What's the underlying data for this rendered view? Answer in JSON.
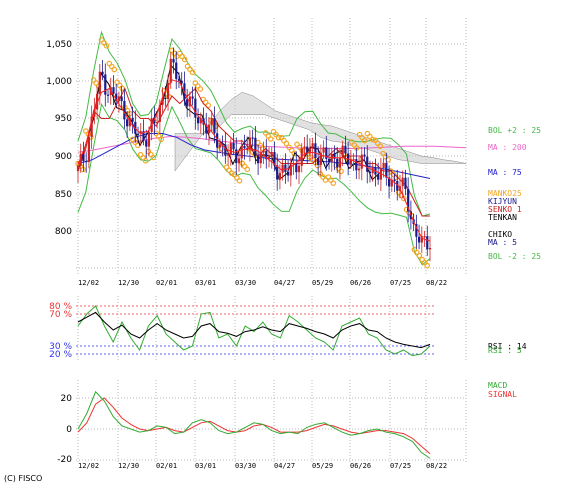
{
  "chart_data": [
    {
      "type": "candlestick",
      "panel": "price",
      "yticks": [
        800,
        850,
        900,
        950,
        "1,000",
        "1,050"
      ],
      "ylim": [
        770,
        1070
      ],
      "grid": true,
      "x_tick_labels": [
        "12/02",
        "12/30",
        "02/01",
        "03/01",
        "03/30",
        "04/27",
        "05/29",
        "06/26",
        "07/25",
        "08/22"
      ],
      "legend": {
        "bol_upper": "BOL +2 : 25",
        "ma200": "MA : 200",
        "ma75": "MA : 75",
        "manko": "MANKO25",
        "kijyun": "KIJYUN",
        "senko1": "SENKO 1",
        "tenkan": "TENKAN",
        "chiko": "CHIKO",
        "ma5": "MA : 5",
        "bol_lower": "BOL -2 : 25"
      },
      "approx_close": [
        880,
        905,
        960,
        1010,
        985,
        975,
        960,
        935,
        925,
        930,
        945,
        985,
        1020,
        1000,
        975,
        955,
        945,
        935,
        920,
        905,
        900,
        910,
        915,
        905,
        900,
        890,
        880,
        875,
        895,
        905,
        910,
        900,
        895,
        900,
        898,
        895,
        890,
        885,
        880,
        875,
        870,
        860,
        850,
        800,
        780,
        790
      ],
      "ichimoku_cloud": {
        "senko_a": [
          880,
          900,
          920,
          940,
          960,
          975,
          985,
          980,
          970,
          960,
          955,
          950,
          945,
          942,
          940,
          935,
          930,
          925,
          920,
          915,
          910,
          905,
          900,
          898,
          895,
          893,
          890
        ],
        "senko_b": [
          930,
          930,
          930,
          930,
          940,
          955,
          955,
          955,
          955,
          950,
          945,
          940,
          935,
          925,
          920,
          918,
          912,
          910,
          905,
          900,
          895,
          893,
          890,
          890,
          890,
          890,
          890
        ]
      },
      "ma200": [
        905,
        908,
        912,
        916,
        920,
        924,
        926,
        925,
        923,
        920,
        918,
        915,
        913,
        912,
        911,
        910,
        910,
        910,
        910,
        911,
        912,
        913,
        913,
        913,
        912,
        911
      ],
      "ma75": [
        890,
        895,
        905,
        915,
        925,
        930,
        930,
        925,
        915,
        908,
        905,
        902,
        900,
        898,
        896,
        895,
        894,
        893,
        892,
        890,
        888,
        885,
        882,
        878,
        874,
        870
      ]
    },
    {
      "type": "line",
      "panel": "rsi",
      "yticks_left": [
        "80 %",
        "70 %",
        "30 %",
        "20 %"
      ],
      "reference_levels": [
        80,
        70,
        30,
        20
      ],
      "legend": {
        "rsi14": "RSI : 14",
        "rsi5": "RSI : 5"
      },
      "series": [
        {
          "name": "RSI : 14",
          "color": "#000000",
          "values": [
            60,
            66,
            72,
            60,
            50,
            56,
            45,
            40,
            50,
            58,
            50,
            45,
            40,
            42,
            55,
            58,
            48,
            46,
            42,
            48,
            50,
            54,
            50,
            48,
            58,
            55,
            52,
            48,
            45,
            40,
            50,
            55,
            58,
            50,
            48,
            40,
            35,
            32,
            30,
            28,
            32
          ]
        },
        {
          "name": "RSI : 5",
          "color": "#33aa33",
          "values": [
            55,
            70,
            80,
            55,
            35,
            60,
            40,
            25,
            55,
            68,
            45,
            35,
            25,
            30,
            70,
            72,
            40,
            45,
            30,
            55,
            48,
            60,
            45,
            40,
            68,
            60,
            50,
            40,
            35,
            25,
            55,
            60,
            65,
            45,
            40,
            25,
            20,
            25,
            18,
            20,
            30
          ]
        }
      ]
    },
    {
      "type": "line",
      "panel": "macd",
      "yticks": [
        "20",
        "0",
        "-20"
      ],
      "ylim": [
        -25,
        28
      ],
      "legend": {
        "macd": "MACD",
        "signal": "SIGNAL"
      },
      "series": [
        {
          "name": "MACD",
          "color": "#33aa33",
          "values": [
            0,
            10,
            24,
            18,
            8,
            2,
            0,
            -2,
            -1,
            2,
            1,
            -3,
            -2,
            4,
            6,
            4,
            -1,
            -3,
            -2,
            1,
            4,
            3,
            -1,
            -3,
            -2,
            -3,
            1,
            3,
            4,
            1,
            -2,
            -4,
            -3,
            -1,
            0,
            -2,
            -3,
            -5,
            -8,
            -15,
            -19
          ]
        },
        {
          "name": "SIGNAL",
          "color": "#ee3333",
          "values": [
            -2,
            4,
            16,
            20,
            14,
            7,
            3,
            0,
            -1,
            0,
            1,
            -1,
            -2,
            1,
            4,
            5,
            2,
            -1,
            -2,
            -1,
            2,
            3,
            1,
            -2,
            -2,
            -2,
            -1,
            1,
            3,
            2,
            0,
            -2,
            -3,
            -2,
            -1,
            -1,
            -2,
            -3,
            -6,
            -11,
            -16
          ]
        }
      ]
    }
  ],
  "copyright": "(C) FISCO",
  "colors": {
    "candle_up": "#cc2222",
    "candle_down": "#1a1a8c",
    "ma5": "#ff2222",
    "ma75": "#2222cc",
    "ma200": "#ee66cc",
    "bollinger": "#44bb44",
    "chiko": "#000000",
    "manko_dots": "#f5a623",
    "cloud_fill": "#cccccc"
  }
}
